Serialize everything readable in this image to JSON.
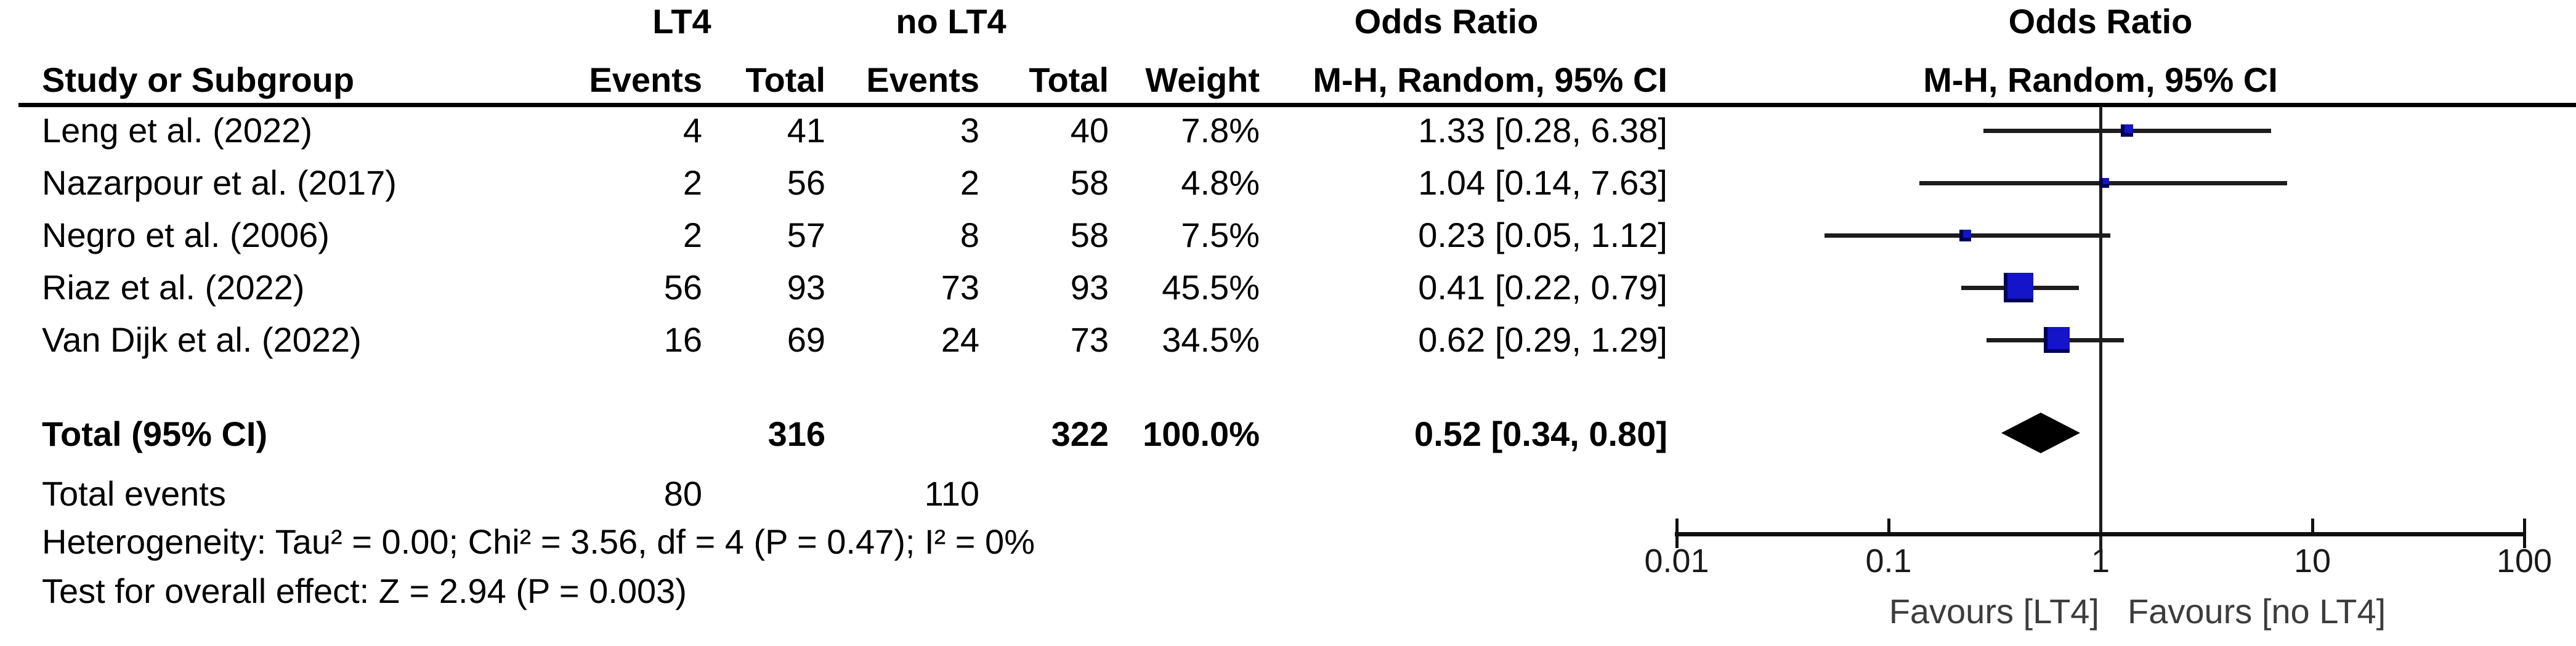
{
  "table": {
    "header_groups": {
      "lt4": "LT4",
      "no_lt4": "no LT4",
      "odds_ratio_text": "Odds Ratio",
      "odds_ratio_plot": "Odds Ratio"
    },
    "columns": {
      "study": "Study or Subgroup",
      "events1": "Events",
      "total1": "Total",
      "events2": "Events",
      "total2": "Total",
      "weight": "Weight",
      "ci_text": "M-H, Random, 95% CI",
      "ci_plot": "M-H, Random, 95% CI"
    },
    "rows": [
      {
        "study": "Leng et al. (2022)",
        "events1": "4",
        "total1": "41",
        "events2": "3",
        "total2": "40",
        "weight": "7.8%",
        "ci": "1.33 [0.28, 6.38]"
      },
      {
        "study": "Nazarpour et al. (2017)",
        "events1": "2",
        "total1": "56",
        "events2": "2",
        "total2": "58",
        "weight": "4.8%",
        "ci": "1.04 [0.14, 7.63]"
      },
      {
        "study": "Negro et al. (2006)",
        "events1": "2",
        "total1": "57",
        "events2": "8",
        "total2": "58",
        "weight": "7.5%",
        "ci": "0.23 [0.05, 1.12]"
      },
      {
        "study": "Riaz et al. (2022)",
        "events1": "56",
        "total1": "93",
        "events2": "73",
        "total2": "93",
        "weight": "45.5%",
        "ci": "0.41 [0.22, 0.79]"
      },
      {
        "study": "Van Dijk et al. (2022)",
        "events1": "16",
        "total1": "69",
        "events2": "24",
        "total2": "73",
        "weight": "34.5%",
        "ci": "0.62 [0.29, 1.29]"
      }
    ],
    "total_row": {
      "label": "Total (95% CI)",
      "total1": "316",
      "total2": "322",
      "weight": "100.0%",
      "ci": "0.52 [0.34, 0.80]"
    },
    "total_events": {
      "label": "Total events",
      "events1": "80",
      "events2": "110"
    },
    "heterogeneity": "Heterogeneity: Tau² = 0.00; Chi² = 3.56, df = 4 (P = 0.47); I² = 0%",
    "overall_effect": "Test for overall effect: Z = 2.94 (P = 0.003)"
  },
  "chart_data": {
    "type": "forest",
    "x_scale": "log10",
    "axis_range": [
      0.01,
      100
    ],
    "axis_ticks": [
      "0.01",
      "0.1",
      "1",
      "10",
      "100"
    ],
    "null_line": 1,
    "favours_left": "Favours [LT4]",
    "favours_right": "Favours [no LT4]",
    "studies": [
      {
        "name": "Leng et al. (2022)",
        "or": 1.33,
        "ci_low": 0.28,
        "ci_high": 6.38,
        "weight_pct": 7.8
      },
      {
        "name": "Nazarpour et al. (2017)",
        "or": 1.04,
        "ci_low": 0.14,
        "ci_high": 7.63,
        "weight_pct": 4.8
      },
      {
        "name": "Negro et al. (2006)",
        "or": 0.23,
        "ci_low": 0.05,
        "ci_high": 1.12,
        "weight_pct": 7.5
      },
      {
        "name": "Riaz et al. (2022)",
        "or": 0.41,
        "ci_low": 0.22,
        "ci_high": 0.79,
        "weight_pct": 45.5
      },
      {
        "name": "Van Dijk et al. (2022)",
        "or": 0.62,
        "ci_low": 0.29,
        "ci_high": 1.29,
        "weight_pct": 34.5
      }
    ],
    "total": {
      "or": 0.52,
      "ci_low": 0.34,
      "ci_high": 0.8
    },
    "colors": {
      "square": "#1414c8",
      "square_shade": "#000055",
      "ci_line": "#1d1d1d",
      "axis": "#111111",
      "diamond": "#000000"
    }
  }
}
